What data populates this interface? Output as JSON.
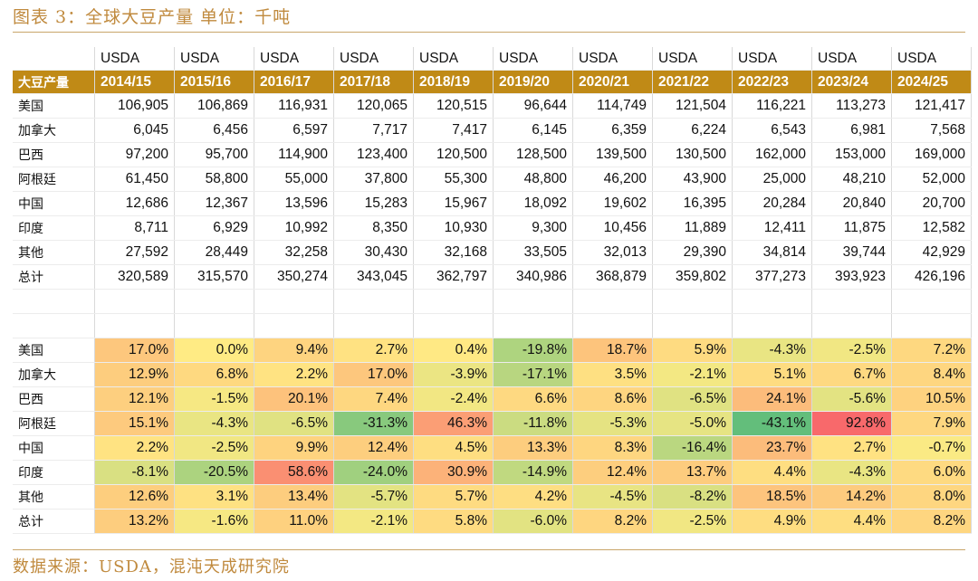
{
  "title": "图表 3：全球大豆产量 单位：千吨",
  "source": "数据来源：USDA，混沌天成研究院",
  "header": {
    "source_label": "USDA",
    "corner_label": "大豆产量",
    "years": [
      "2014/15",
      "2015/16",
      "2016/17",
      "2017/18",
      "2018/19",
      "2019/20",
      "2020/21",
      "2021/22",
      "2022/23",
      "2023/24",
      "2024/25"
    ]
  },
  "production": [
    {
      "country": "美国",
      "values": [
        "106,905",
        "106,869",
        "116,931",
        "120,065",
        "120,515",
        "96,644",
        "114,749",
        "121,504",
        "116,221",
        "113,273",
        "121,417"
      ]
    },
    {
      "country": "加拿大",
      "values": [
        "6,045",
        "6,456",
        "6,597",
        "7,717",
        "7,417",
        "6,145",
        "6,359",
        "6,224",
        "6,543",
        "6,981",
        "7,568"
      ]
    },
    {
      "country": "巴西",
      "values": [
        "97,200",
        "95,700",
        "114,900",
        "123,400",
        "120,500",
        "128,500",
        "139,500",
        "130,500",
        "162,000",
        "153,000",
        "169,000"
      ]
    },
    {
      "country": "阿根廷",
      "values": [
        "61,450",
        "58,800",
        "55,000",
        "37,800",
        "55,300",
        "48,800",
        "46,200",
        "43,900",
        "25,000",
        "48,210",
        "52,000"
      ]
    },
    {
      "country": "中国",
      "values": [
        "12,686",
        "12,367",
        "13,596",
        "15,283",
        "15,967",
        "18,092",
        "19,602",
        "16,395",
        "20,284",
        "20,840",
        "20,700"
      ]
    },
    {
      "country": "印度",
      "values": [
        "8,711",
        "6,929",
        "10,992",
        "8,350",
        "10,930",
        "9,300",
        "10,456",
        "11,889",
        "12,411",
        "11,875",
        "12,582"
      ]
    },
    {
      "country": "其他",
      "values": [
        "27,592",
        "28,449",
        "32,258",
        "30,430",
        "32,168",
        "33,505",
        "32,013",
        "29,390",
        "34,814",
        "39,744",
        "42,929"
      ]
    },
    {
      "country": "总计",
      "values": [
        "320,589",
        "315,570",
        "350,274",
        "343,045",
        "362,797",
        "340,986",
        "368,879",
        "359,802",
        "377,273",
        "393,923",
        "426,196"
      ]
    }
  ],
  "growth": [
    {
      "country": "美国",
      "values": [
        17.0,
        0.0,
        9.4,
        2.7,
        0.4,
        -19.8,
        18.7,
        5.9,
        -4.3,
        -2.5,
        7.2
      ]
    },
    {
      "country": "加拿大",
      "values": [
        12.9,
        6.8,
        2.2,
        17.0,
        -3.9,
        -17.1,
        3.5,
        -2.1,
        5.1,
        6.7,
        8.4
      ]
    },
    {
      "country": "巴西",
      "values": [
        12.1,
        -1.5,
        20.1,
        7.4,
        -2.4,
        6.6,
        8.6,
        -6.5,
        24.1,
        -5.6,
        10.5
      ]
    },
    {
      "country": "阿根廷",
      "values": [
        15.1,
        -4.3,
        -6.5,
        -31.3,
        46.3,
        -11.8,
        -5.3,
        -5.0,
        -43.1,
        92.8,
        7.9
      ]
    },
    {
      "country": "中国",
      "values": [
        2.2,
        -2.5,
        9.9,
        12.4,
        4.5,
        13.3,
        8.3,
        -16.4,
        23.7,
        2.7,
        -0.7
      ]
    },
    {
      "country": "印度",
      "values": [
        -8.1,
        -20.5,
        58.6,
        -24.0,
        30.9,
        -14.9,
        12.4,
        13.7,
        4.4,
        -4.3,
        6.0
      ]
    },
    {
      "country": "其他",
      "values": [
        12.6,
        3.1,
        13.4,
        -5.7,
        5.7,
        4.2,
        -4.5,
        -8.2,
        18.5,
        14.2,
        8.0
      ]
    },
    {
      "country": "总计",
      "values": [
        13.2,
        -1.6,
        11.0,
        -2.1,
        5.8,
        -6.0,
        8.2,
        -2.5,
        4.9,
        4.4,
        8.2
      ]
    }
  ]
}
